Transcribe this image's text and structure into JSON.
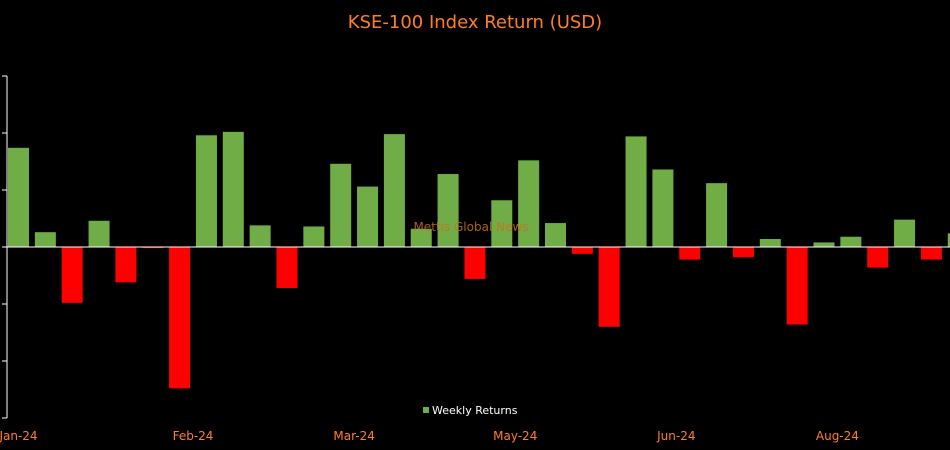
{
  "chart_data": {
    "type": "bar",
    "title": "KSE-100 Index Return (USD)",
    "xlabel": "",
    "ylabel": "",
    "ylim": [
      -15,
      15
    ],
    "grid": false,
    "legend": {
      "position": "bottom-center",
      "entries": [
        {
          "name": "Weekly Returns",
          "color": "#70ad47"
        }
      ]
    },
    "watermark": "Mettis Global News",
    "x_tick_labels": [
      "Jan-24",
      "Feb-24",
      "Mar-24",
      "May-24",
      "Jun-24",
      "Aug-24"
    ],
    "x_tick_index": [
      0,
      6.5,
      12.5,
      18.5,
      24.5,
      30.5
    ],
    "series": [
      {
        "name": "Weekly Returns",
        "values": [
          8.7,
          1.3,
          -4.9,
          2.3,
          -3.1,
          -0.1,
          -12.4,
          9.8,
          10.1,
          1.9,
          -3.6,
          1.8,
          7.3,
          5.3,
          9.9,
          1.6,
          6.4,
          -2.8,
          4.1,
          7.6,
          2.1,
          -0.6,
          -7.0,
          9.7,
          6.8,
          -1.1,
          5.6,
          -0.9,
          0.7,
          -6.8,
          0.4,
          0.9,
          -1.8,
          2.4,
          -1.1,
          1.2
        ]
      }
    ]
  },
  "colors": {
    "positive": "#70ad47",
    "negative": "#ff0000",
    "title": "#ff7f27",
    "axis": "#ffffff",
    "background": "#000000"
  }
}
